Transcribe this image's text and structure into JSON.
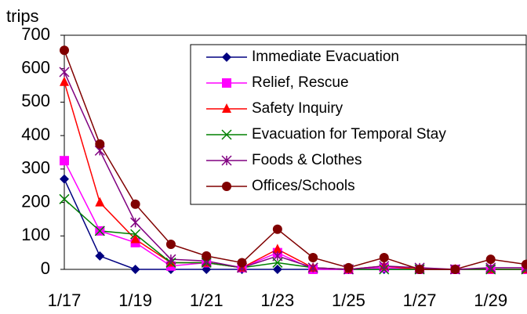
{
  "chart_data": {
    "type": "line",
    "y_label": "trips",
    "categories": [
      "1/17",
      null,
      "1/19",
      null,
      "1/21",
      null,
      "1/23",
      null,
      "1/25",
      null,
      "1/27",
      null,
      "1/29",
      null
    ],
    "ylim": [
      0,
      700
    ],
    "yticks": [
      0,
      100,
      200,
      300,
      400,
      500,
      600,
      700
    ],
    "legend": "upper right",
    "series": [
      {
        "name": "Immediate Evacuation",
        "color": "#000080",
        "marker": "diamond",
        "values": [
          270,
          40,
          0,
          0,
          0,
          0,
          0,
          0,
          0,
          0,
          0,
          0,
          0,
          0
        ]
      },
      {
        "name": "Relief, Rescue",
        "color": "#ff00ff",
        "marker": "square",
        "values": [
          325,
          115,
          80,
          10,
          20,
          5,
          50,
          0,
          0,
          5,
          0,
          0,
          0,
          0
        ]
      },
      {
        "name": "Safety Inquiry",
        "color": "#ff0000",
        "marker": "triangle",
        "values": [
          560,
          200,
          90,
          20,
          20,
          5,
          60,
          5,
          0,
          10,
          0,
          0,
          0,
          0
        ]
      },
      {
        "name": "Evacuation for Temporal Stay",
        "color": "#008000",
        "marker": "x",
        "values": [
          210,
          115,
          105,
          20,
          20,
          5,
          20,
          5,
          0,
          0,
          0,
          0,
          0,
          0
        ]
      },
      {
        "name": "Foods & Clothes",
        "color": "#800080",
        "marker": "star",
        "values": [
          590,
          355,
          140,
          30,
          25,
          5,
          40,
          5,
          0,
          10,
          5,
          0,
          5,
          5
        ]
      },
      {
        "name": "Offices/Schools",
        "color": "#800000",
        "marker": "circle",
        "values": [
          655,
          375,
          195,
          75,
          40,
          20,
          120,
          35,
          5,
          35,
          0,
          0,
          30,
          15
        ]
      }
    ]
  }
}
